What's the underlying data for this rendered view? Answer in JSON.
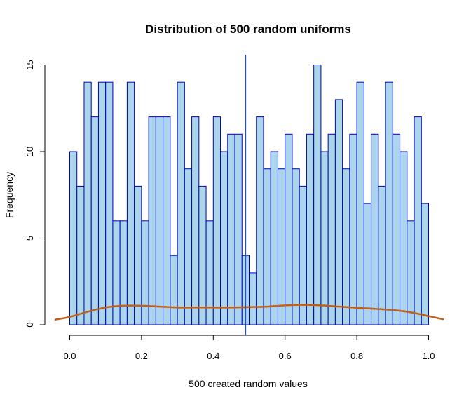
{
  "chart_data": {
    "type": "bar",
    "title": "Distribution of 500 random uniforms",
    "xlabel": "500 created random values",
    "ylabel": "Frequency",
    "bin_width": 0.02,
    "x_start": 0.0,
    "x_ticks": [
      "0.0",
      "0.2",
      "0.4",
      "0.6",
      "0.8",
      "1.0"
    ],
    "y_ticks": [
      "0",
      "5",
      "10",
      "15"
    ],
    "xlim": [
      -0.04,
      1.04
    ],
    "ylim": [
      0,
      15.5
    ],
    "values": [
      10,
      8,
      14,
      12,
      14,
      14,
      6,
      6,
      14,
      8,
      6,
      12,
      12,
      12,
      4,
      14,
      9,
      12,
      8,
      6,
      12,
      10,
      11,
      11,
      4,
      3,
      12,
      9,
      10,
      9,
      11,
      9,
      8,
      11,
      15,
      10,
      11,
      13,
      9,
      11,
      14,
      7,
      11,
      8,
      14,
      11,
      10,
      6,
      12,
      7
    ],
    "vertical_line_x": 0.49,
    "density_curve": {
      "x": [
        -0.04,
        0.0,
        0.05,
        0.1,
        0.15,
        0.2,
        0.25,
        0.3,
        0.35,
        0.4,
        0.45,
        0.5,
        0.55,
        0.6,
        0.65,
        0.7,
        0.75,
        0.8,
        0.85,
        0.9,
        0.95,
        1.0,
        1.04
      ],
      "y": [
        0.3,
        0.45,
        0.75,
        1.0,
        1.1,
        1.1,
        1.05,
        1.0,
        1.0,
        1.0,
        1.0,
        1.02,
        1.05,
        1.12,
        1.15,
        1.12,
        1.05,
        0.98,
        0.92,
        0.85,
        0.72,
        0.5,
        0.32
      ]
    },
    "colors": {
      "bar_fill": "#abd5ea",
      "bar_border": "#0000c0",
      "vertical_line": "#2050c8",
      "density": "#c0601a"
    },
    "grid": false
  }
}
